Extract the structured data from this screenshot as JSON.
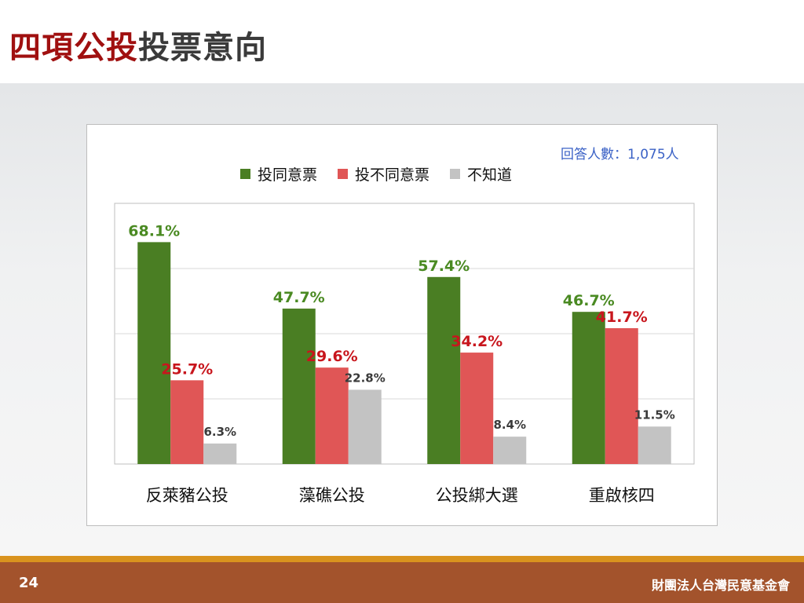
{
  "title": {
    "red_part": "四項公投",
    "gray_part": "投票意向"
  },
  "sample_note": "回答人數：1,075人",
  "footer": {
    "page_number": "24",
    "organization": "財團法人台灣民意基金會"
  },
  "chart_data": {
    "type": "bar",
    "title": "",
    "xlabel": "",
    "ylabel": "",
    "ylim": [
      0,
      80
    ],
    "grid": true,
    "legend_position": "top",
    "categories": [
      "反萊豬公投",
      "藻礁公投",
      "公投綁大選",
      "重啟核四"
    ],
    "series": [
      {
        "name": "投同意票",
        "color": "#4a7e23",
        "label_color": "#4a8a22",
        "values": [
          68.1,
          47.7,
          57.4,
          46.7
        ],
        "labels": [
          "68.1%",
          "47.7%",
          "57.4%",
          "46.7%"
        ]
      },
      {
        "name": "投不同意票",
        "color": "#e05656",
        "label_color": "#c8161d",
        "values": [
          25.7,
          29.6,
          34.2,
          41.7
        ],
        "labels": [
          "25.7%",
          "29.6%",
          "34.2%",
          "41.7%"
        ]
      },
      {
        "name": "不知道",
        "color": "#c3c3c3",
        "label_color": "#3a3a3a",
        "values": [
          6.3,
          22.8,
          8.4,
          11.5
        ],
        "labels": [
          "6.3%",
          "22.8%",
          "8.4%",
          "11.5%"
        ]
      }
    ]
  }
}
